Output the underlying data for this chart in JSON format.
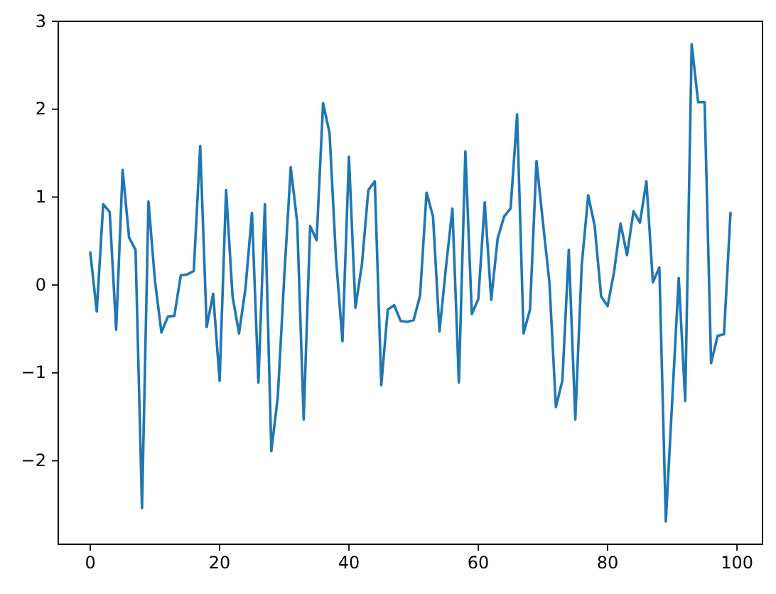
{
  "chart_data": {
    "type": "line",
    "color": "#1f77b4",
    "x": [
      0,
      1,
      2,
      3,
      4,
      5,
      6,
      7,
      8,
      9,
      10,
      11,
      12,
      13,
      14,
      15,
      16,
      17,
      18,
      19,
      20,
      21,
      22,
      23,
      24,
      25,
      26,
      27,
      28,
      29,
      30,
      31,
      32,
      33,
      34,
      35,
      36,
      37,
      38,
      39,
      40,
      41,
      42,
      43,
      44,
      45,
      46,
      47,
      48,
      49,
      50,
      51,
      52,
      53,
      54,
      55,
      56,
      57,
      58,
      59,
      60,
      61,
      62,
      63,
      64,
      65,
      66,
      67,
      68,
      69,
      70,
      71,
      72,
      73,
      74,
      75,
      76,
      77,
      78,
      79,
      80,
      81,
      82,
      83,
      84,
      85,
      86,
      87,
      88,
      89,
      90,
      91,
      92,
      93,
      94,
      95,
      96,
      97,
      98,
      99
    ],
    "values": [
      0.37,
      -0.3,
      0.92,
      0.83,
      -0.51,
      1.31,
      0.54,
      0.4,
      -2.54,
      0.95,
      0.05,
      -0.54,
      -0.36,
      -0.35,
      0.11,
      0.12,
      0.16,
      1.58,
      -0.48,
      -0.1,
      -1.09,
      1.08,
      -0.13,
      -0.55,
      -0.04,
      0.82,
      -1.11,
      0.92,
      -1.89,
      -1.27,
      0.1,
      1.34,
      0.71,
      -1.53,
      0.67,
      0.51,
      2.07,
      1.73,
      0.3,
      -0.64,
      1.46,
      -0.26,
      0.23,
      1.08,
      1.18,
      -1.14,
      -0.28,
      -0.23,
      -0.41,
      -0.42,
      -0.4,
      -0.12,
      1.05,
      0.78,
      -0.53,
      0.2,
      0.87,
      -1.11,
      1.52,
      -0.33,
      -0.16,
      0.94,
      -0.17,
      0.53,
      0.78,
      0.87,
      1.94,
      -0.55,
      -0.28,
      1.41,
      0.71,
      0.03,
      -1.39,
      -1.09,
      0.4,
      -1.53,
      0.23,
      1.02,
      0.67,
      -0.13,
      -0.24,
      0.15,
      0.7,
      0.34,
      0.84,
      0.71,
      1.18,
      0.03,
      0.2,
      -2.69,
      -1.3,
      0.08,
      -1.32,
      2.74,
      2.08,
      2.08,
      -0.89,
      -0.58,
      -0.56,
      0.82
    ],
    "xlim": [
      -4.95,
      103.95
    ],
    "ylim": [
      -2.95,
      3.0
    ],
    "xticks": [
      0,
      20,
      40,
      60,
      80,
      100
    ],
    "yticks": [
      {
        "value": -2,
        "label": "−2"
      },
      {
        "value": -1,
        "label": "−1"
      },
      0,
      1,
      2,
      3
    ]
  }
}
